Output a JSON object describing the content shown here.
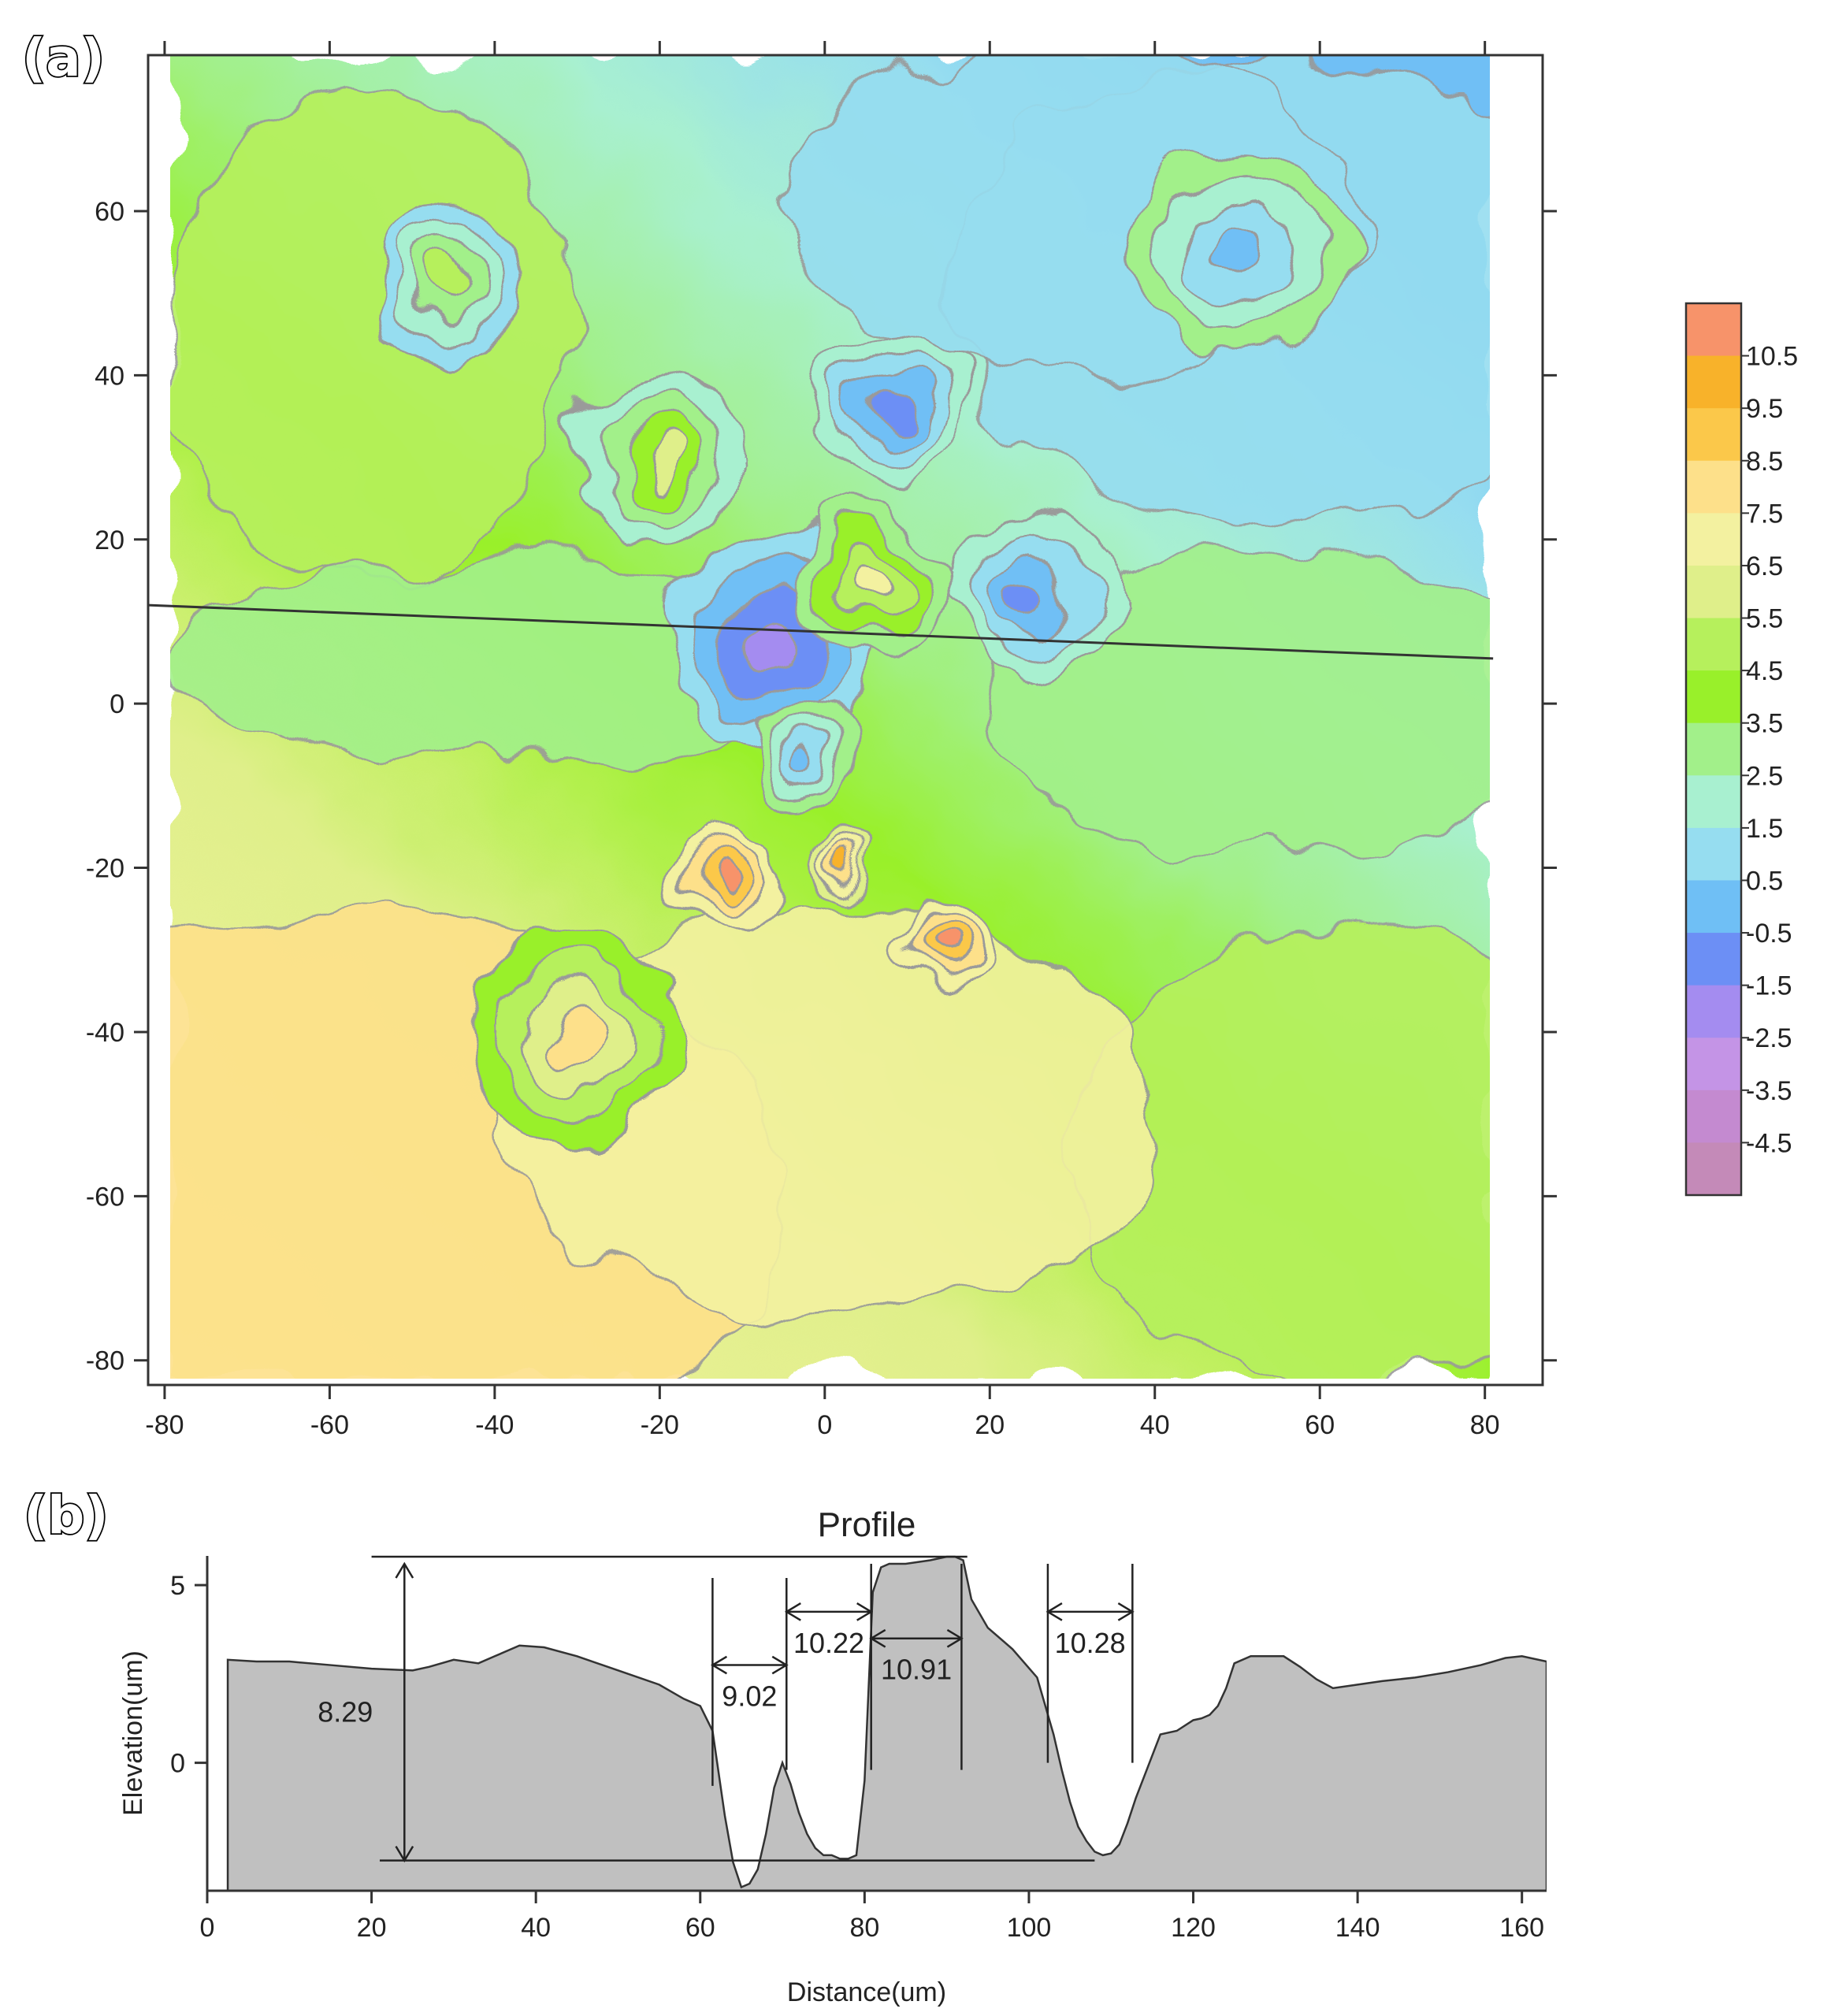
{
  "panel_a_label": "(a)",
  "panel_b_label": "(b)",
  "chart_data": [
    {
      "type": "heatmap",
      "panel": "(a)",
      "title": "",
      "xlabel": "",
      "ylabel": "",
      "xlim": [
        -82,
        87
      ],
      "ylim": [
        -83,
        79
      ],
      "xticks": [
        -80,
        -60,
        -40,
        -20,
        0,
        20,
        40,
        60,
        80
      ],
      "yticks": [
        -80,
        -60,
        -40,
        -20,
        0,
        20,
        40,
        60
      ],
      "colorbar": {
        "levels": [
          10.5,
          9.5,
          8.5,
          7.5,
          6.5,
          5.5,
          4.5,
          3.5,
          2.5,
          1.5,
          0.5,
          -0.5,
          -1.5,
          -2.5,
          -3.5,
          -4.5
        ],
        "colors": [
          "#f7936a",
          "#f8b22a",
          "#fbc84a",
          "#fde08a",
          "#f3f1a0",
          "#dfef8a",
          "#b6f05c",
          "#99f02a",
          "#a2f08a",
          "#a8f0d0",
          "#96ddf0",
          "#6fbff5",
          "#6c8ff5",
          "#a48cf0",
          "#c494e6",
          "#c48ad0",
          "#c48ab8"
        ]
      },
      "line_segment": {
        "from": [
          -82,
          12
        ],
        "to": [
          81,
          5.5
        ]
      },
      "features": [
        {
          "kind": "low",
          "x": -6,
          "y": 8,
          "r": 10,
          "level": -2.5
        },
        {
          "kind": "low",
          "x": 25,
          "y": 14,
          "r": 8,
          "level": -1.5
        },
        {
          "kind": "low",
          "x": 8,
          "y": 36,
          "r": 7,
          "level": -1.5
        },
        {
          "kind": "low",
          "x": 50,
          "y": 55,
          "r": 10,
          "level": -0.5
        },
        {
          "kind": "low",
          "x": -3,
          "y": -7,
          "r": 5,
          "level": -0.5
        },
        {
          "kind": "high",
          "x": -12,
          "y": -22,
          "r": 5,
          "level": 10.5
        },
        {
          "kind": "high",
          "x": 14,
          "y": -30,
          "r": 4,
          "level": 10.5
        },
        {
          "kind": "high",
          "x": 2,
          "y": -20,
          "r": 3,
          "level": 9.5
        },
        {
          "kind": "high",
          "x": 6,
          "y": 15,
          "r": 7,
          "level": 6.5
        },
        {
          "kind": "high",
          "x": -20,
          "y": 30,
          "r": 8,
          "level": 5.5
        },
        {
          "kind": "high",
          "x": -45,
          "y": 52,
          "r": 7,
          "level": 4.5
        },
        {
          "kind": "high",
          "x": -30,
          "y": -40,
          "r": 10,
          "level": 7.5
        }
      ]
    },
    {
      "type": "area",
      "panel": "(b)",
      "title": "Profile",
      "xlabel": "Distance(um)",
      "ylabel": "Elevation(um)",
      "xlim": [
        0,
        163
      ],
      "ylim": [
        -3.6,
        5.6
      ],
      "xticks": [
        0,
        20,
        40,
        60,
        80,
        100,
        120,
        140,
        160
      ],
      "yticks": [
        0,
        5
      ],
      "x": [
        2.5,
        6,
        10,
        15,
        20,
        25,
        27,
        30,
        33,
        35,
        38,
        41,
        45,
        50,
        55,
        58,
        60,
        61.5,
        63,
        64,
        65,
        66,
        67,
        68,
        69,
        70,
        71,
        72,
        73,
        74,
        75,
        76,
        77,
        78,
        79,
        80,
        81,
        82,
        83,
        85,
        88,
        90,
        91,
        92,
        93,
        95,
        98,
        101,
        102,
        103,
        104,
        105,
        106,
        107,
        108,
        109,
        110,
        111,
        112,
        113,
        114,
        116,
        118,
        120,
        121,
        122,
        123,
        124,
        125,
        127,
        129,
        131,
        133,
        135,
        137,
        140,
        143,
        147,
        151,
        155,
        158,
        160,
        163
      ],
      "y": [
        2.9,
        2.85,
        2.85,
        2.75,
        2.65,
        2.6,
        2.7,
        2.9,
        2.8,
        3.0,
        3.3,
        3.25,
        3.0,
        2.6,
        2.2,
        1.8,
        1.6,
        0.9,
        -1.5,
        -2.8,
        -3.5,
        -3.4,
        -3.0,
        -2.0,
        -0.7,
        0.0,
        -0.6,
        -1.4,
        -2.0,
        -2.4,
        -2.6,
        -2.6,
        -2.7,
        -2.7,
        -2.6,
        -0.5,
        4.8,
        5.5,
        5.6,
        5.6,
        5.7,
        5.8,
        5.8,
        5.7,
        4.6,
        3.8,
        3.2,
        2.4,
        1.6,
        0.8,
        -0.2,
        -1.1,
        -1.8,
        -2.2,
        -2.5,
        -2.6,
        -2.55,
        -2.3,
        -1.7,
        -1.0,
        -0.4,
        0.8,
        0.9,
        1.2,
        1.25,
        1.35,
        1.6,
        2.1,
        2.8,
        3.0,
        3.0,
        3.0,
        2.7,
        2.35,
        2.1,
        2.2,
        2.3,
        2.4,
        2.55,
        2.75,
        2.95,
        3.0,
        2.85
      ],
      "annotations": [
        {
          "label": "8.29",
          "kind": "vertical",
          "x": 24,
          "y1": -2.75,
          "y2": 5.6
        },
        {
          "label": "9.02",
          "kind": "horizontal",
          "x1": 61.5,
          "x2": 70.5,
          "y": 2.75
        },
        {
          "label": "10.22",
          "kind": "horizontal",
          "x1": 70.5,
          "x2": 80.8,
          "y": 4.25
        },
        {
          "label": "10.91",
          "kind": "horizontal",
          "x1": 80.8,
          "x2": 91.8,
          "y": 3.5
        },
        {
          "label": "10.28",
          "kind": "horizontal",
          "x1": 102.3,
          "x2": 112.6,
          "y": 4.25
        }
      ],
      "reference_lines": [
        {
          "x1": 20,
          "x2": 92.5,
          "y": 5.8
        },
        {
          "x1": 21,
          "x2": 108,
          "y": -2.75
        }
      ],
      "guide_lines": [
        {
          "x": 61.5,
          "y1": 5.2,
          "y2": -0.65
        },
        {
          "x": 70.5,
          "y1": 5.2,
          "y2": -0.2
        },
        {
          "x": 80.8,
          "y1": 5.6,
          "y2": -0.2
        },
        {
          "x": 91.8,
          "y1": 5.6,
          "y2": -0.2
        },
        {
          "x": 102.3,
          "y1": 5.6,
          "y2": 0.0
        },
        {
          "x": 112.6,
          "y1": 5.6,
          "y2": 0.0
        }
      ]
    }
  ]
}
